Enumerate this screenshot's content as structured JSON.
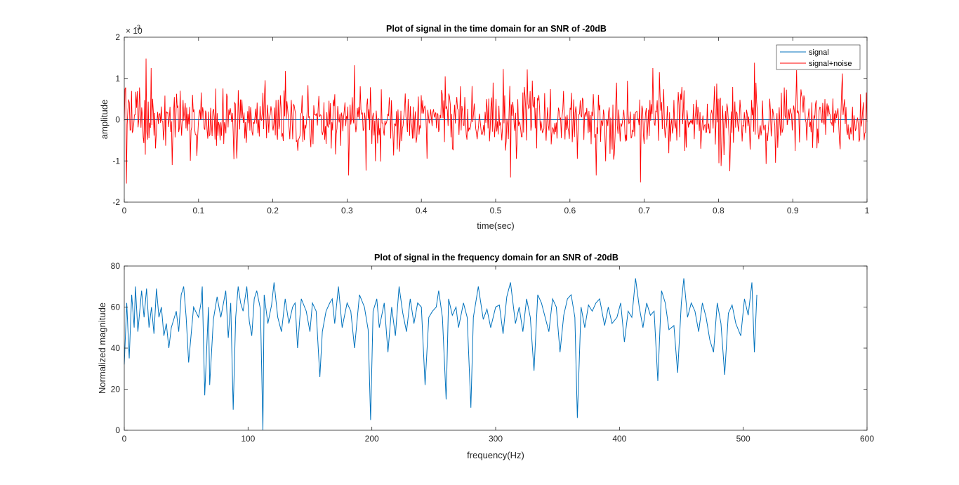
{
  "chart_data": [
    {
      "type": "line",
      "title": "Plot of signal in the time domain for an SNR of -20dB",
      "xlabel": "time(sec)",
      "ylabel": "amplitude",
      "xlim": [
        0,
        1
      ],
      "ylim": [
        -2,
        2
      ],
      "y_exponent_label": "× 10",
      "y_exponent_power": "-3",
      "x_ticks": [
        0,
        0.1,
        0.2,
        0.3,
        0.4,
        0.5,
        0.6,
        0.7,
        0.8,
        0.9,
        1
      ],
      "x_tick_labels": [
        "0",
        "0.1",
        "0.2",
        "0.3",
        "0.4",
        "0.5",
        "0.6",
        "0.7",
        "0.8",
        "0.9",
        "1"
      ],
      "y_ticks": [
        -2,
        -1,
        0,
        1,
        2
      ],
      "y_tick_labels": [
        "-2",
        "-1",
        "0",
        "1",
        "2"
      ],
      "grid": false,
      "legend_position": "top-right",
      "series": [
        {
          "name": "signal",
          "color": "#0072BD",
          "description": "near-zero underlying signal, hidden behind noise",
          "x": [
            0,
            1
          ],
          "y": [
            0,
            0
          ]
        },
        {
          "name": "signal+noise",
          "color": "#FF0000",
          "sample_count": 1024,
          "y_std": 0.38,
          "notable_points": [
            {
              "x": 0.003,
              "y": -1.55
            },
            {
              "x": 0.029,
              "y": 1.48
            },
            {
              "x": 0.065,
              "y": -1.1
            },
            {
              "x": 0.217,
              "y": 1.18
            },
            {
              "x": 0.302,
              "y": -1.35
            },
            {
              "x": 0.31,
              "y": 1.32
            },
            {
              "x": 0.432,
              "y": 1.05
            },
            {
              "x": 0.51,
              "y": 1.23
            },
            {
              "x": 0.52,
              "y": -1.4
            },
            {
              "x": 0.543,
              "y": 1.22
            },
            {
              "x": 0.635,
              "y": -1.35
            },
            {
              "x": 0.695,
              "y": -1.52
            },
            {
              "x": 0.72,
              "y": 1.15
            },
            {
              "x": 0.848,
              "y": 1.38
            },
            {
              "x": 0.905,
              "y": 1.2
            },
            {
              "x": 0.967,
              "y": 1.12
            }
          ]
        }
      ]
    },
    {
      "type": "line",
      "title": "Plot of signal in the frequency domain for an SNR of -20dB",
      "xlabel": "frequency(Hz)",
      "ylabel": "Normalized magnitude",
      "xlim": [
        0,
        600
      ],
      "ylim": [
        0,
        80
      ],
      "x_ticks": [
        0,
        100,
        200,
        300,
        400,
        500,
        600
      ],
      "x_tick_labels": [
        "0",
        "100",
        "200",
        "300",
        "400",
        "500",
        "600"
      ],
      "y_ticks": [
        0,
        20,
        40,
        60,
        80
      ],
      "y_tick_labels": [
        "0",
        "20",
        "40",
        "60",
        "80"
      ],
      "grid": false,
      "series": [
        {
          "color": "#0072BD",
          "x_range": [
            0,
            511
          ],
          "points": [
            [
              0,
              32
            ],
            [
              2,
              62
            ],
            [
              4,
              35
            ],
            [
              6,
              66
            ],
            [
              8,
              50
            ],
            [
              9,
              70
            ],
            [
              11,
              48
            ],
            [
              14,
              68
            ],
            [
              16,
              55
            ],
            [
              18,
              69
            ],
            [
              20,
              50
            ],
            [
              22,
              60
            ],
            [
              24,
              47
            ],
            [
              26,
              69
            ],
            [
              28,
              55
            ],
            [
              30,
              60
            ],
            [
              32,
              46
            ],
            [
              34,
              52
            ],
            [
              36,
              40
            ],
            [
              38,
              50
            ],
            [
              42,
              58
            ],
            [
              44,
              48
            ],
            [
              46,
              66
            ],
            [
              48,
              70
            ],
            [
              50,
              55
            ],
            [
              52,
              33
            ],
            [
              56,
              60
            ],
            [
              60,
              55
            ],
            [
              62,
              62
            ],
            [
              63,
              70
            ],
            [
              65,
              17
            ],
            [
              68,
              60
            ],
            [
              69,
              22
            ],
            [
              72,
              54
            ],
            [
              75,
              65
            ],
            [
              78,
              55
            ],
            [
              82,
              68
            ],
            [
              84,
              45
            ],
            [
              86,
              62
            ],
            [
              88,
              10
            ],
            [
              90,
              55
            ],
            [
              92,
              70
            ],
            [
              94,
              62
            ],
            [
              96,
              58
            ],
            [
              99,
              70
            ],
            [
              101,
              53
            ],
            [
              103,
              46
            ],
            [
              105,
              64
            ],
            [
              107,
              68
            ],
            [
              110,
              59
            ],
            [
              112,
              0
            ],
            [
              113,
              66
            ],
            [
              116,
              52
            ],
            [
              119,
              61
            ],
            [
              121,
              72
            ],
            [
              124,
              55
            ],
            [
              127,
              48
            ],
            [
              130,
              64
            ],
            [
              133,
              52
            ],
            [
              136,
              60
            ],
            [
              138,
              62
            ],
            [
              140,
              40
            ],
            [
              143,
              64
            ],
            [
              147,
              58
            ],
            [
              150,
              48
            ],
            [
              152,
              62
            ],
            [
              155,
              58
            ],
            [
              158,
              26
            ],
            [
              160,
              48
            ],
            [
              163,
              58
            ],
            [
              166,
              62
            ],
            [
              168,
              64
            ],
            [
              170,
              52
            ],
            [
              173,
              70
            ],
            [
              176,
              50
            ],
            [
              180,
              62
            ],
            [
              183,
              58
            ],
            [
              186,
              40
            ],
            [
              190,
              66
            ],
            [
              194,
              60
            ],
            [
              197,
              49
            ],
            [
              199,
              5
            ],
            [
              201,
              58
            ],
            [
              204,
              64
            ],
            [
              206,
              50
            ],
            [
              210,
              62
            ],
            [
              213,
              38
            ],
            [
              216,
              60
            ],
            [
              219,
              46
            ],
            [
              222,
              70
            ],
            [
              225,
              57
            ],
            [
              228,
              48
            ],
            [
              231,
              64
            ],
            [
              234,
              52
            ],
            [
              237,
              62
            ],
            [
              240,
              60
            ],
            [
              243,
              22
            ],
            [
              246,
              55
            ],
            [
              249,
              58
            ],
            [
              252,
              60
            ],
            [
              254,
              68
            ],
            [
              257,
              55
            ],
            [
              260,
              15
            ],
            [
              262,
              64
            ],
            [
              265,
              56
            ],
            [
              268,
              60
            ],
            [
              270,
              50
            ],
            [
              274,
              62
            ],
            [
              277,
              55
            ],
            [
              280,
              11
            ],
            [
              282,
              55
            ],
            [
              286,
              70
            ],
            [
              290,
              54
            ],
            [
              293,
              59
            ],
            [
              296,
              50
            ],
            [
              300,
              60
            ],
            [
              303,
              61
            ],
            [
              306,
              47
            ],
            [
              309,
              65
            ],
            [
              312,
              72
            ],
            [
              316,
              52
            ],
            [
              319,
              60
            ],
            [
              322,
              48
            ],
            [
              325,
              64
            ],
            [
              328,
              55
            ],
            [
              331,
              29
            ],
            [
              334,
              66
            ],
            [
              337,
              62
            ],
            [
              340,
              55
            ],
            [
              343,
              48
            ],
            [
              346,
              64
            ],
            [
              349,
              60
            ],
            [
              352,
              38
            ],
            [
              355,
              56
            ],
            [
              358,
              64
            ],
            [
              361,
              66
            ],
            [
              364,
              55
            ],
            [
              366,
              6
            ],
            [
              369,
              60
            ],
            [
              372,
              50
            ],
            [
              375,
              61
            ],
            [
              378,
              58
            ],
            [
              381,
              62
            ],
            [
              384,
              64
            ],
            [
              388,
              51
            ],
            [
              391,
              60
            ],
            [
              394,
              52
            ],
            [
              398,
              55
            ],
            [
              401,
              62
            ],
            [
              404,
              43
            ],
            [
              407,
              58
            ],
            [
              410,
              55
            ],
            [
              413,
              74
            ],
            [
              416,
              60
            ],
            [
              419,
              50
            ],
            [
              422,
              62
            ],
            [
              425,
              56
            ],
            [
              428,
              58
            ],
            [
              431,
              24
            ],
            [
              434,
              68
            ],
            [
              437,
              62
            ],
            [
              440,
              49
            ],
            [
              444,
              51
            ],
            [
              447,
              28
            ],
            [
              450,
              62
            ],
            [
              452,
              74
            ],
            [
              455,
              55
            ],
            [
              458,
              62
            ],
            [
              461,
              58
            ],
            [
              464,
              48
            ],
            [
              467,
              62
            ],
            [
              470,
              55
            ],
            [
              473,
              44
            ],
            [
              476,
              38
            ],
            [
              479,
              62
            ],
            [
              482,
              52
            ],
            [
              485,
              27
            ],
            [
              488,
              57
            ],
            [
              491,
              61
            ],
            [
              494,
              52
            ],
            [
              498,
              46
            ],
            [
              501,
              64
            ],
            [
              504,
              56
            ],
            [
              507,
              72
            ],
            [
              509,
              38
            ],
            [
              511,
              66
            ]
          ]
        }
      ]
    }
  ],
  "legend": {
    "items": [
      {
        "label": "signal",
        "color": "#0072BD"
      },
      {
        "label": "signal+noise",
        "color": "#FF0000"
      }
    ]
  }
}
